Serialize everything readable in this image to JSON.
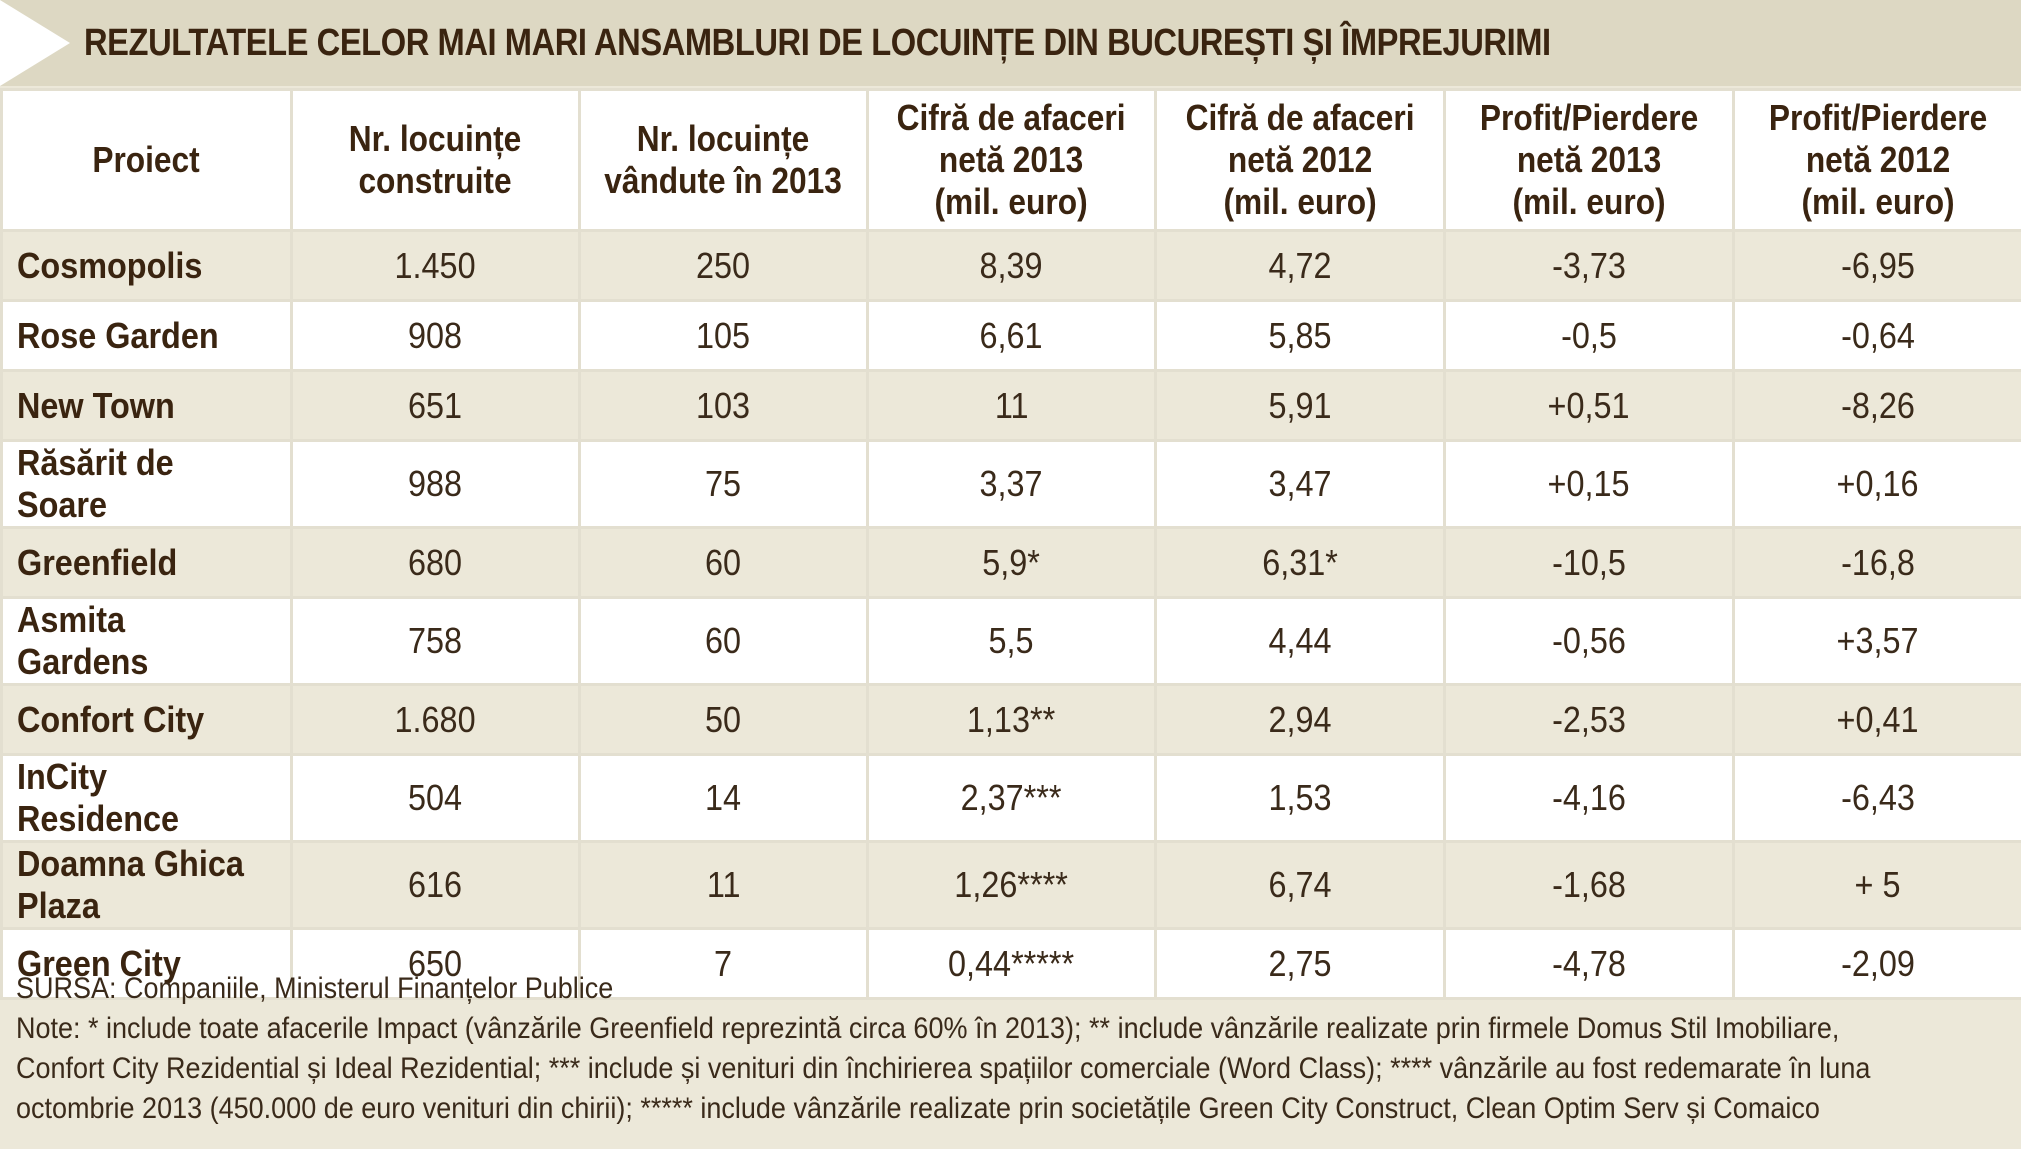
{
  "title": "REZULTATELE CELOR MAI MARI ANSAMBLURI DE LOCUINȚE DIN BUCUREȘTI ȘI ÎMPREJURIMI",
  "headers": [
    [
      "Proiect"
    ],
    [
      "Nr. locuințe",
      "construite"
    ],
    [
      "Nr. locuințe",
      "vândute în 2013"
    ],
    [
      "Cifră de afaceri",
      "netă 2013",
      "(mil. euro)"
    ],
    [
      "Cifră de afaceri",
      "netă 2012",
      "(mil. euro)"
    ],
    [
      "Profit/Pierdere",
      "netă 2013",
      "(mil. euro)"
    ],
    [
      "Profit/Pierdere",
      "netă 2012",
      "(mil. euro)"
    ]
  ],
  "rows": [
    [
      "Cosmopolis",
      "1.450",
      "250",
      "8,39",
      "4,72",
      "-3,73",
      "-6,95"
    ],
    [
      "Rose Garden",
      "908",
      "105",
      "6,61",
      "5,85",
      "-0,5",
      "-0,64"
    ],
    [
      "New Town",
      "651",
      "103",
      "11",
      "5,91",
      "+0,51",
      "-8,26"
    ],
    [
      "Răsărit de Soare",
      "988",
      "75",
      "3,37",
      "3,47",
      "+0,15",
      "+0,16"
    ],
    [
      "Greenfield",
      "680",
      "60",
      "5,9*",
      "6,31*",
      "-10,5",
      "-16,8"
    ],
    [
      "Asmita Gardens",
      "758",
      "60",
      "5,5",
      "4,44",
      "-0,56",
      "+3,57"
    ],
    [
      "Confort City",
      "1.680",
      "50",
      "1,13**",
      "2,94",
      "-2,53",
      "+0,41"
    ],
    [
      "InCity Residence",
      "504",
      "14",
      "2,37***",
      "1,53",
      "-4,16",
      "-6,43"
    ],
    [
      "Doamna Ghica Plaza",
      "616",
      "11",
      "1,26****",
      "6,74",
      "-1,68",
      "+ 5"
    ],
    [
      "Green City",
      "650",
      "7",
      "0,44*****",
      "2,75",
      "-4,78",
      "-2,09"
    ]
  ],
  "footer": {
    "source": "SURSA: Companiile, Ministerul Finanțelor Publice",
    "notes": [
      "Note: * include toate afacerile Impact (vânzările Greenfield reprezintă circa 60% în 2013); ** include vânzările realizate prin firmele Domus Stil Imobiliare,",
      "Confort City Rezidential și Ideal Rezidential; *** include și venituri din închirierea spațiilor comerciale (Word Class); **** vânzările au fost redemarate în luna",
      "octombrie 2013 (450.000 de euro venituri din chirii); ***** include vânzările realizate prin societățile Green City Construct, Clean Optim Serv și Comaico"
    ]
  },
  "colors": {
    "title_bar": "#ddd8c3",
    "shaded_row": "#ece8d9",
    "plain_row": "#ffffff",
    "text": "#3a2410"
  }
}
